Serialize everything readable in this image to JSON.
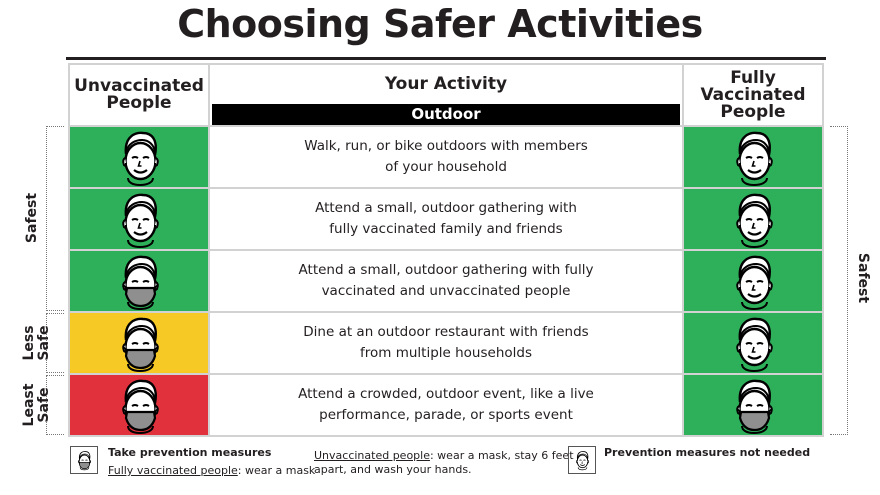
{
  "title": "Choosing Safer Activities",
  "headers": {
    "left_line1": "Unvaccinated",
    "left_line2": "People",
    "center": "Your Activity",
    "section": "Outdoor",
    "right_line1": "Fully",
    "right_line2": "Vaccinated",
    "right_line3": "People"
  },
  "colors": {
    "green": "#2eb05b",
    "yellow": "#f7c925",
    "red": "#e1313c"
  },
  "rows": [
    {
      "unvax": "green",
      "unvax_face": "no-mask",
      "line1": "Walk, run, or bike outdoors with members",
      "line2": "of your household",
      "vax": "green",
      "vax_face": "no-mask"
    },
    {
      "unvax": "green",
      "unvax_face": "no-mask",
      "line1": "Attend a small, outdoor gathering with",
      "line2": "fully vaccinated family and friends",
      "vax": "green",
      "vax_face": "no-mask"
    },
    {
      "unvax": "green",
      "unvax_face": "mask",
      "line1": "Attend a small, outdoor gathering with fully",
      "line2": "vaccinated and unvaccinated people",
      "vax": "green",
      "vax_face": "no-mask"
    },
    {
      "unvax": "yellow",
      "unvax_face": "mask",
      "line1": "Dine at an outdoor restaurant with friends",
      "line2": "from multiple households",
      "vax": "green",
      "vax_face": "no-mask"
    },
    {
      "unvax": "red",
      "unvax_face": "mask",
      "line1": "Attend a crowded, outdoor event, like a live",
      "line2": "performance, parade, or sports event",
      "vax": "green",
      "vax_face": "mask"
    }
  ],
  "side_labels": {
    "safest_left": "Safest",
    "less_safe_1": "Less",
    "less_safe_2": "Safe",
    "least_safe_1": "Least",
    "least_safe_2": "Safe",
    "safest_right": "Safest"
  },
  "legend": {
    "take_title": "Take prevention measures",
    "vax_prefix": "Fully vaccinated people",
    "vax_rest": ": wear a mask",
    "unvax_prefix": "Unvaccinated people",
    "unvax_rest1": ": wear a mask, stay 6 feet",
    "unvax_rest2": "apart, and wash your hands.",
    "not_needed": "Prevention measures not needed"
  }
}
